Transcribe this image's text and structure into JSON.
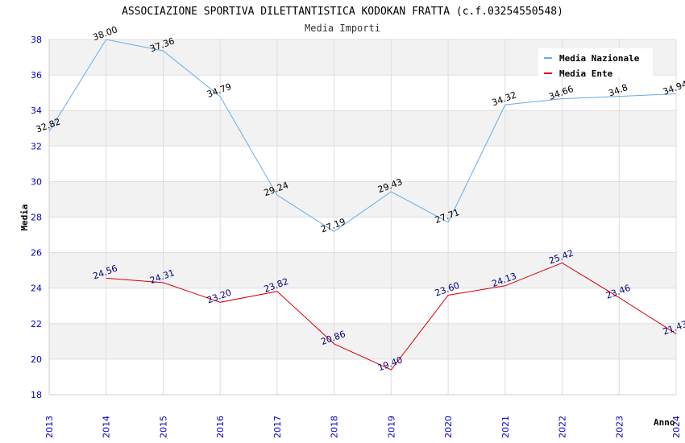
{
  "chart_data": {
    "type": "line",
    "title": "ASSOCIAZIONE SPORTIVA DILETTANTISTICA KODOKAN FRATTA (c.f.03254550548)",
    "subtitle": "Media Importi",
    "xlabel": "Anno",
    "ylabel": "Media",
    "ylim": [
      18,
      38
    ],
    "y_ticks": [
      "18",
      "20",
      "22",
      "24",
      "26",
      "28",
      "30",
      "32",
      "34",
      "36",
      "38"
    ],
    "x": [
      "2013",
      "2014",
      "2015",
      "2016",
      "2017",
      "2018",
      "2019",
      "2020",
      "2021",
      "2022",
      "2023",
      "2024"
    ],
    "grid": true,
    "legend_position": "top-right",
    "series": [
      {
        "name": "Media Nazionale",
        "color": "#66aaee",
        "label_color": "#000000",
        "values": [
          32.82,
          38.0,
          37.36,
          34.79,
          29.24,
          27.19,
          29.43,
          27.71,
          34.32,
          34.66,
          34.8,
          34.94
        ],
        "labels": [
          "32.82",
          "38.00",
          "37.36",
          "34.79",
          "29.24",
          "27.19",
          "29.43",
          "27.71",
          "34.32",
          "34.66",
          "34.8",
          "34.94"
        ]
      },
      {
        "name": "Media Ente",
        "color": "#dd0000",
        "label_color": "#000080",
        "values": [
          null,
          24.56,
          24.31,
          23.2,
          23.82,
          20.86,
          19.4,
          23.6,
          24.13,
          25.42,
          23.46,
          21.43
        ],
        "labels": [
          "",
          "24.56",
          "24.31",
          "23.20",
          "23.82",
          "20.86",
          "19.40",
          "23.60",
          "24.13",
          "25.42",
          "23.46",
          "21.43"
        ]
      }
    ]
  }
}
